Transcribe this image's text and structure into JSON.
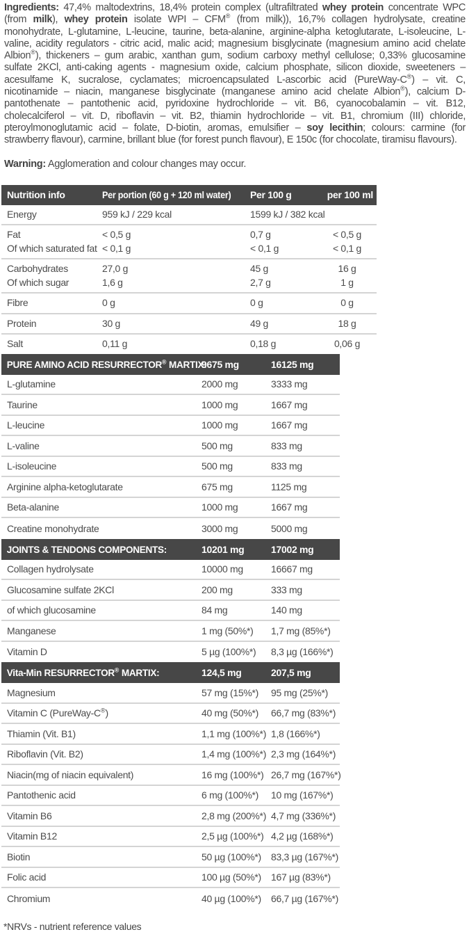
{
  "colors": {
    "bar_background": "#474747",
    "bar_text": "#ffffff",
    "body_text": "#4b4b4b",
    "divider": "#d4d4d4"
  },
  "ingredients": {
    "segments": [
      {
        "text": "Ingredients:",
        "bold": true
      },
      {
        "text": " 47,4% maltodextrins, 18,4% protein complex (ultrafiltrated ",
        "bold": false
      },
      {
        "text": "whey protein",
        "bold": true
      },
      {
        "text": " concentrate WPC (from ",
        "bold": false
      },
      {
        "text": "milk",
        "bold": true
      },
      {
        "text": "), ",
        "bold": false
      },
      {
        "text": "whey protein",
        "bold": true
      },
      {
        "text": " isolate WPI – CFM® (from milk)), 16,7% collagen hydrolysate, creatine monohydrate, L-glutamine, L-leucine, taurine, beta-alanine, arginine-alpha ketoglutarate, L-isoleucine, L-valine, acidity regulators - citric acid, malic acid; magnesium bisglycinate (magnesium amino acid chelate Albion®), thickeners – gum arabic, xanthan gum, sodium carboxy methyl cellulose; 0,33% glucosamine sulfate 2KCl, anti-caking agents - magnesium oxide, calcium phosphate, silicon dioxide, sweeteners – acesulfame K, sucralose, cyclamates; microencapsulated L-ascorbic acid (PureWay-C®) – vit. C, nicotinamide – niacin, manganese bisglycinate (manganese amino acid chelate Albion®), calcium D-pantothenate – pantothenic acid, pyridoxine hydrochloride – vit. B6, cyanocobalamin – vit. B12, cholecalciferol – vit. D, riboflavin – vit. B2, thiamin hydrochloride – vit. B1, chromium (III) chloride, pteroylmonoglutamic acid – folate, D-biotin, aromas, emulsifier – ",
        "bold": false
      },
      {
        "text": "soy lecithin",
        "bold": true
      },
      {
        "text": "; colours: carmine (for strawberry flavour), carmine, brillant blue (for forest punch flavour), E 150c (for chocolate, tiramisu flavours).",
        "bold": false
      }
    ]
  },
  "warning": {
    "segments": [
      {
        "text": "Warning:",
        "bold": true
      },
      {
        "text": " Agglomeration and colour changes may occur.",
        "bold": false
      }
    ]
  },
  "nutrition_table": {
    "headers": [
      "Nutrition info",
      "Per portion (60 g + 120 ml water)",
      "Per 100 g",
      "per 100 ml"
    ],
    "groups": [
      {
        "rows": [
          [
            "Energy",
            "959 kJ / 229 kcal",
            "1599 kJ / 382 kcal",
            ""
          ]
        ]
      },
      {
        "rows": [
          [
            "Fat",
            "< 0,5 g",
            "0,7 g",
            "< 0,5 g"
          ],
          [
            "Of which saturated fat",
            "< 0,1 g",
            "< 0,1 g",
            "< 0,1 g"
          ]
        ]
      },
      {
        "rows": [
          [
            "Carbohydrates",
            "27,0 g",
            "45 g",
            "16 g"
          ],
          [
            "Of which sugar",
            "1,6 g",
            "2,7 g",
            "1 g"
          ]
        ]
      },
      {
        "rows": [
          [
            "Fibre",
            "0 g",
            "0 g",
            "0 g"
          ]
        ]
      },
      {
        "rows": [
          [
            "Protein",
            "30 g",
            "49 g",
            "18 g"
          ]
        ]
      },
      {
        "rows": [
          [
            "Salt",
            "0,11 g",
            "0,18 g",
            "0,06 g"
          ]
        ]
      }
    ]
  },
  "sections": [
    {
      "header": {
        "label": "PURE AMINO ACID RESURRECTOR® MARTIX:",
        "col2": "9675 mg",
        "col3": "16125 mg"
      },
      "rows": [
        [
          "L-glutamine",
          "2000 mg",
          "3333 mg"
        ],
        [
          "Taurine",
          "1000 mg",
          "1667 mg"
        ],
        [
          "L-leucine",
          "1000 mg",
          "1667 mg"
        ],
        [
          "L-valine",
          "500 mg",
          "833 mg"
        ],
        [
          "L-isoleucine",
          "500 mg",
          "833 mg"
        ],
        [
          "Arginine alpha-ketoglutarate",
          "675 mg",
          "1125 mg"
        ],
        [
          "Beta-alanine",
          "1000 mg",
          "1667 mg"
        ],
        [
          "Creatine monohydrate",
          "3000 mg",
          "5000 mg"
        ]
      ]
    },
    {
      "header": {
        "label": "JOINTS & TENDONS COMPONENTS:",
        "col2": "10201 mg",
        "col3": "17002 mg"
      },
      "rows": [
        [
          "Collagen hydrolysate",
          "10000 mg",
          "16667 mg"
        ],
        [
          "Glucosamine sulfate 2KCl",
          "200 mg",
          "333 mg"
        ],
        [
          "of which glucosamine",
          "84 mg",
          "140 mg"
        ],
        [
          "Manganese",
          "1 mg (50%*)",
          "1,7 mg (85%*)"
        ],
        [
          "Vitamin D",
          "5 µg (100%*)",
          "8,3 µg (166%*)"
        ]
      ]
    },
    {
      "header": {
        "label": "Vita-Min RESURRECTOR® MARTIX:",
        "col2": "124,5 mg",
        "col3": "207,5 mg"
      },
      "rows": [
        [
          "Magnesium",
          "57 mg (15%*)",
          "95 mg (25%*)"
        ],
        [
          "Vitamin C (PureWay-C®)",
          "40 mg (50%*)",
          "66,7 mg (83%*)"
        ],
        [
          "Thiamin (Vit. B1)",
          "1,1 mg (100%*)",
          "1,8 (166%*)"
        ],
        [
          "Riboflavin (Vit. B2)",
          "1,4 mg (100%*)",
          "2,3 mg (164%*)"
        ],
        [
          "Niacin(mg of niacin equivalent)",
          "16 mg (100%*)",
          "26,7 mg (167%*)"
        ],
        [
          "Pantothenic acid",
          "6 mg (100%*)",
          "10 mg (167%*)"
        ],
        [
          "Vitamin B6",
          "2,8 mg (200%*)",
          "4,7 mg (336%*)"
        ],
        [
          "Vitamin B12",
          "2,5 µg (100%*)",
          "4,2 µg (168%*)"
        ],
        [
          "Biotin",
          "50 µg (100%*)",
          "83,3 µg (167%*)"
        ],
        [
          "Folic acid",
          "100 µg (50%*)",
          "167 µg (83%*)"
        ],
        [
          "Chromium",
          "40 µg (100%*)",
          "66,7 µg (167%*)"
        ]
      ]
    }
  ],
  "footnote": "*NRVs - nutrient reference values"
}
